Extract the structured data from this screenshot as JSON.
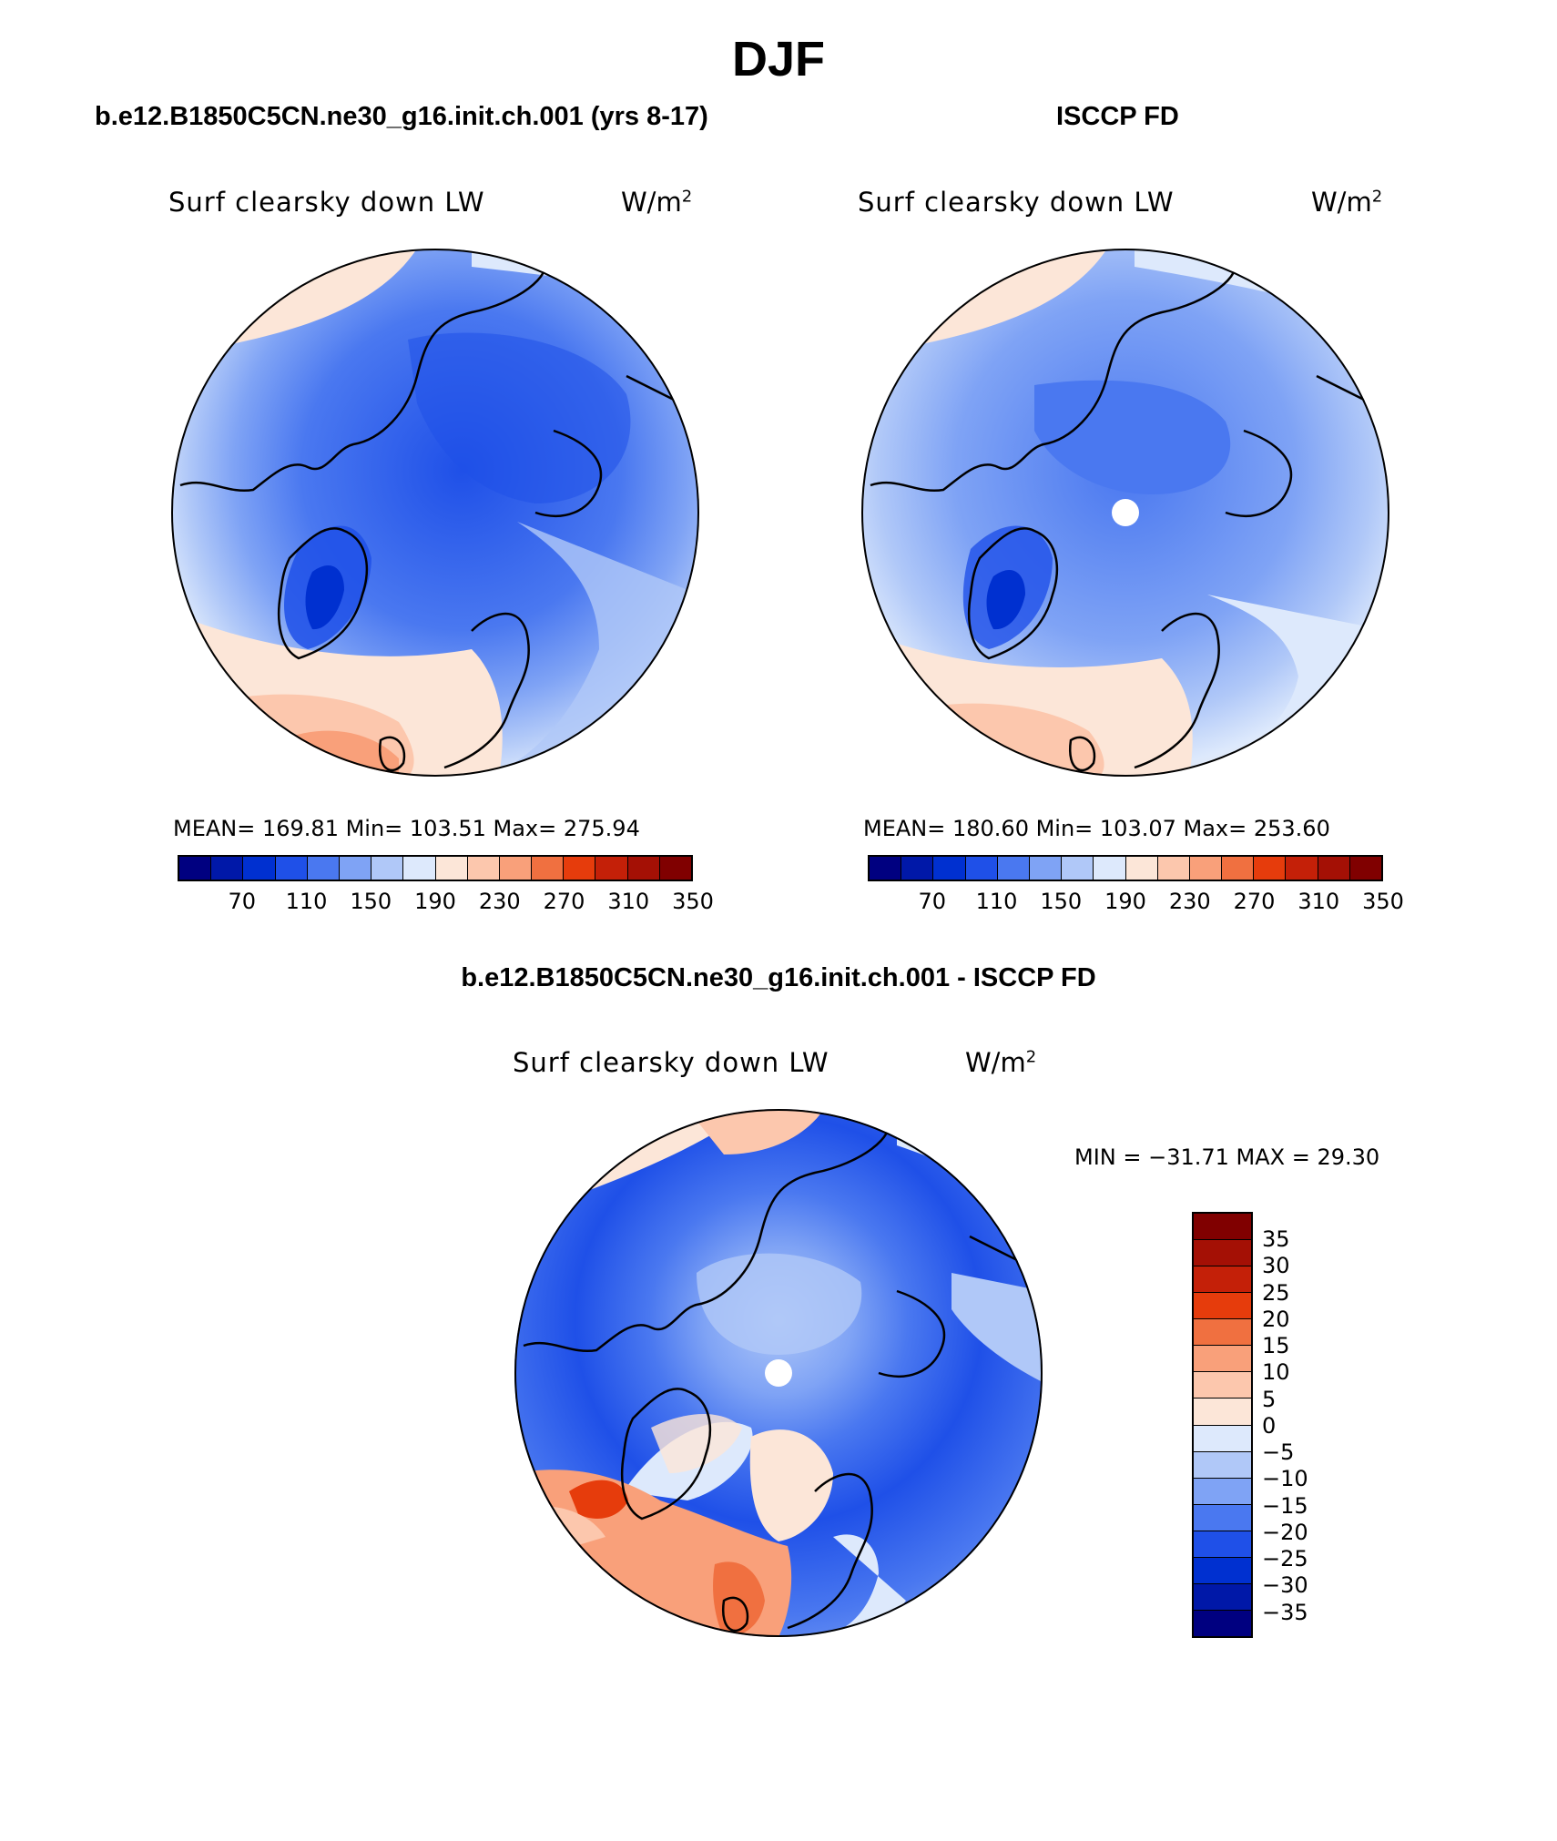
{
  "title": "DJF",
  "palette": [
    "#000080",
    "#0018a8",
    "#0030d0",
    "#1f50e8",
    "#4a78f0",
    "#7fa3f5",
    "#b0c8f8",
    "#dde9fc",
    "#fce6d8",
    "#fcc7ad",
    "#f9a07a",
    "#f07040",
    "#e63c0c",
    "#c42008",
    "#a41005",
    "#800000"
  ],
  "panels": [
    {
      "title": "b.e12.B1850C5CN.ne30_g16.init.ch.001 (yrs 8-17)",
      "variable": "Surf clearsky down LW",
      "units_base": "W/m",
      "units_exp": "2",
      "stats": "MEAN= 169.81   Min= 103.51   Max= 275.94",
      "colorbar_ticks": [
        "70",
        "110",
        "150",
        "190",
        "230",
        "270",
        "310",
        "350"
      ]
    },
    {
      "title": "ISCCP FD",
      "variable": "Surf clearsky down LW",
      "units_base": "W/m",
      "units_exp": "2",
      "stats": "MEAN= 180.60   Min= 103.07   Max= 253.60",
      "colorbar_ticks": [
        "70",
        "110",
        "150",
        "190",
        "230",
        "270",
        "310",
        "350"
      ]
    }
  ],
  "diff_panel": {
    "title": "b.e12.B1850C5CN.ne30_g16.init.ch.001 - ISCCP FD",
    "variable": "Surf clearsky down LW",
    "units_base": "W/m",
    "units_exp": "2",
    "stats": "MIN = −31.71 MAX =   29.30",
    "colorbar_ticks": [
      "35",
      "30",
      "25",
      "20",
      "15",
      "10",
      "5",
      "0",
      "−5",
      "−10",
      "−15",
      "−20",
      "−25",
      "−30",
      "−35"
    ]
  }
}
